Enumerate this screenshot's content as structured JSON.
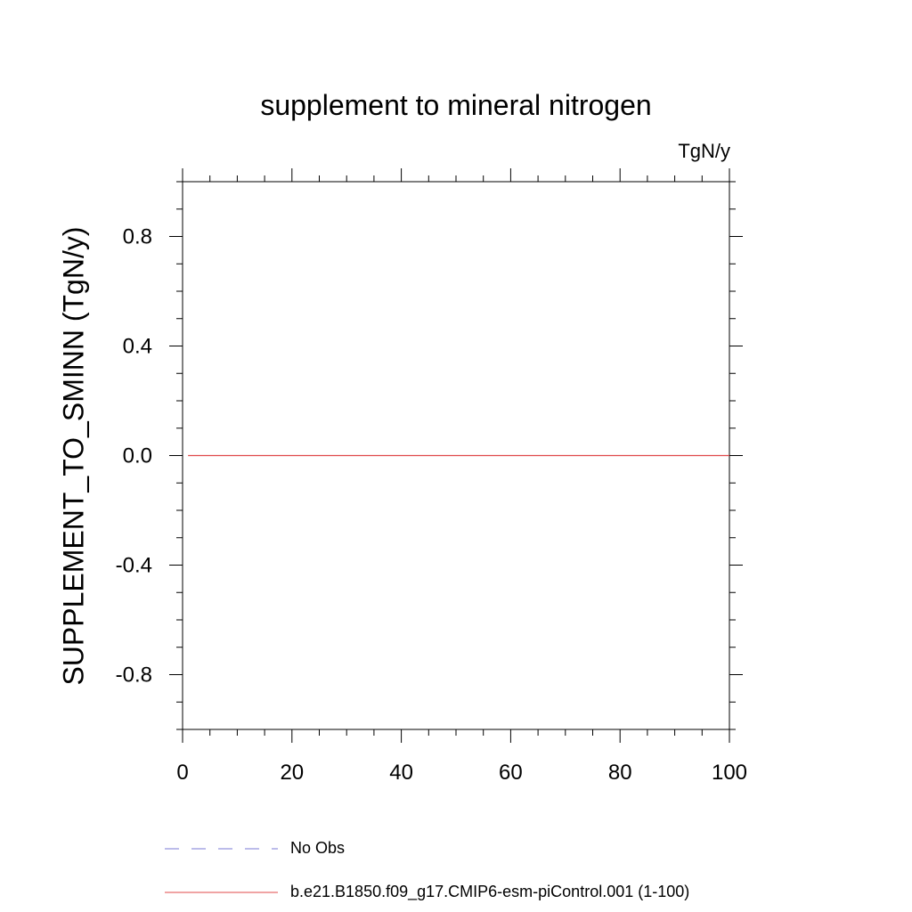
{
  "chart_data": {
    "type": "line",
    "title": "supplement to mineral nitrogen",
    "units": "TgN/y",
    "xlabel": "",
    "ylabel": "SUPPLEMENT_TO_SMINN  (TgN/y)",
    "xlim": [
      0,
      100
    ],
    "ylim": [
      -1.0,
      1.0
    ],
    "xticks": [
      0,
      20,
      40,
      60,
      80,
      100
    ],
    "xtick_labels": [
      "0",
      "20",
      "40",
      "60",
      "80",
      "100"
    ],
    "yticks": [
      -0.8,
      -0.4,
      0.0,
      0.4,
      0.8
    ],
    "ytick_labels": [
      "-0.8",
      "-0.4",
      "0.0",
      "0.4",
      "0.8"
    ],
    "grid": false,
    "series": [
      {
        "name": "b.e21.B1850.f09_g17.CMIP6-esm-piControl.001 (1-100)",
        "color": "#e0484a",
        "style": "solid",
        "x": [
          1,
          100
        ],
        "y": [
          0.0,
          0.0
        ]
      }
    ],
    "legend": [
      {
        "label": "No Obs",
        "color": "#7a7ad6",
        "style": "dashed"
      },
      {
        "label": "b.e21.B1850.f09_g17.CMIP6-esm-piControl.001 (1-100)",
        "color": "#e0484a",
        "style": "solid"
      }
    ]
  }
}
